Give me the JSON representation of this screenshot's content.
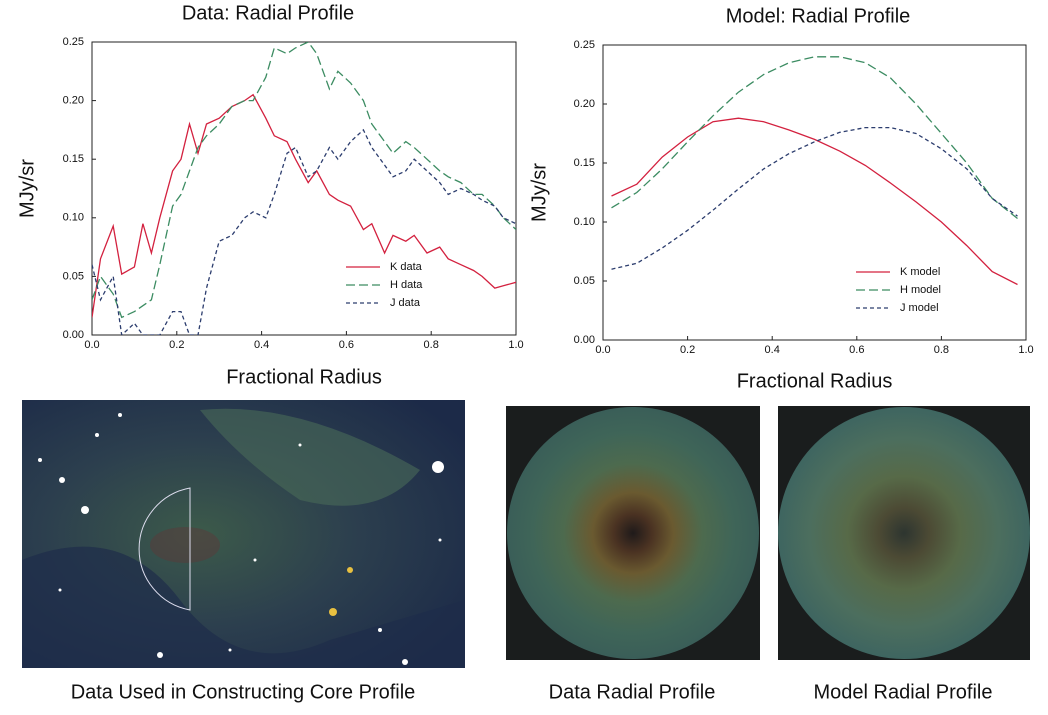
{
  "chart_data": [
    {
      "type": "line",
      "title": "Data: Radial Profile",
      "xlabel": "Fractional Radius",
      "ylabel": "MJy/sr",
      "x": [
        0,
        0.02,
        0.05,
        0.07,
        0.1,
        0.12,
        0.14,
        0.16,
        0.19,
        0.21,
        0.23,
        0.25,
        0.27,
        0.3,
        0.33,
        0.36,
        0.38,
        0.41,
        0.43,
        0.46,
        0.48,
        0.51,
        0.53,
        0.56,
        0.58,
        0.61,
        0.64,
        0.66,
        0.69,
        0.71,
        0.74,
        0.76,
        0.79,
        0.82,
        0.84,
        0.87,
        0.9,
        0.92,
        0.95,
        0.97,
        1.0
      ],
      "series": [
        {
          "name": "K data",
          "color": "#d3213f",
          "linestyle": "solid",
          "values": [
            0.015,
            0.065,
            0.093,
            0.052,
            0.058,
            0.095,
            0.07,
            0.1,
            0.14,
            0.15,
            0.18,
            0.155,
            0.18,
            0.185,
            0.195,
            0.2,
            0.205,
            0.185,
            0.17,
            0.165,
            0.15,
            0.13,
            0.14,
            0.12,
            0.115,
            0.11,
            0.09,
            0.095,
            0.07,
            0.085,
            0.08,
            0.085,
            0.07,
            0.075,
            0.065,
            0.06,
            0.055,
            0.05,
            0.04,
            0.042,
            0.045
          ]
        },
        {
          "name": "H data",
          "color": "#3c8c62",
          "linestyle": "dashed",
          "values": [
            0.03,
            0.05,
            0.035,
            0.015,
            0.02,
            0.025,
            0.03,
            0.06,
            0.11,
            0.12,
            0.14,
            0.16,
            0.17,
            0.18,
            0.195,
            0.2,
            0.2,
            0.22,
            0.245,
            0.24,
            0.245,
            0.25,
            0.24,
            0.21,
            0.225,
            0.215,
            0.2,
            0.18,
            0.165,
            0.155,
            0.165,
            0.16,
            0.15,
            0.14,
            0.135,
            0.13,
            0.12,
            0.12,
            0.11,
            0.1,
            0.09
          ]
        },
        {
          "name": "J data",
          "color": "#2c3d6e",
          "linestyle": "dotted",
          "values": [
            0.06,
            0.03,
            0.05,
            0.0,
            0.01,
            0.0,
            0.0,
            0.0,
            0.02,
            0.02,
            0.0,
            0.0,
            0.04,
            0.08,
            0.085,
            0.1,
            0.105,
            0.1,
            0.12,
            0.155,
            0.16,
            0.135,
            0.14,
            0.16,
            0.15,
            0.165,
            0.175,
            0.16,
            0.145,
            0.135,
            0.14,
            0.15,
            0.14,
            0.13,
            0.12,
            0.125,
            0.12,
            0.115,
            0.11,
            0.1,
            0.095
          ]
        }
      ],
      "xlim": [
        0,
        1
      ],
      "ylim": [
        0,
        0.25
      ],
      "xticks": [
        {
          "value": 0,
          "label": "0.0"
        },
        0.2,
        0.4,
        0.6,
        0.8,
        {
          "value": 1,
          "label": "1.0"
        }
      ],
      "yticks": [
        {
          "value": 0,
          "label": "0.00"
        },
        0.05,
        {
          "value": 0.1,
          "label": "0.10"
        },
        0.15,
        {
          "value": 0.2,
          "label": "0.20"
        },
        0.25
      ],
      "legend": "lower right"
    },
    {
      "type": "line",
      "title": "Model: Radial Profile",
      "xlabel": "Fractional Radius",
      "ylabel": "MJy/sr",
      "x": [
        0.02,
        0.08,
        0.14,
        0.2,
        0.26,
        0.32,
        0.38,
        0.44,
        0.5,
        0.56,
        0.62,
        0.68,
        0.74,
        0.8,
        0.86,
        0.92,
        0.98
      ],
      "series": [
        {
          "name": "K model",
          "color": "#d3213f",
          "linestyle": "solid",
          "values": [
            0.122,
            0.132,
            0.155,
            0.172,
            0.185,
            0.188,
            0.185,
            0.178,
            0.17,
            0.16,
            0.148,
            0.133,
            0.117,
            0.1,
            0.08,
            0.058,
            0.047
          ]
        },
        {
          "name": "H model",
          "color": "#3c8c62",
          "linestyle": "dashed",
          "values": [
            0.112,
            0.125,
            0.145,
            0.168,
            0.19,
            0.21,
            0.225,
            0.235,
            0.24,
            0.24,
            0.235,
            0.222,
            0.2,
            0.175,
            0.15,
            0.12,
            0.103
          ]
        },
        {
          "name": "J model",
          "color": "#2c3d6e",
          "linestyle": "dotted",
          "values": [
            0.06,
            0.065,
            0.078,
            0.093,
            0.11,
            0.128,
            0.145,
            0.158,
            0.168,
            0.176,
            0.18,
            0.18,
            0.175,
            0.162,
            0.145,
            0.12,
            0.105
          ]
        }
      ],
      "xlim": [
        0,
        1
      ],
      "ylim": [
        0,
        0.25
      ],
      "xticks": [
        {
          "value": 0,
          "label": "0.0"
        },
        0.2,
        0.4,
        0.6,
        0.8,
        {
          "value": 1,
          "label": "1.0"
        }
      ],
      "yticks": [
        {
          "value": 0,
          "label": "0.00"
        },
        0.05,
        {
          "value": 0.1,
          "label": "0.10"
        },
        0.15,
        {
          "value": 0.2,
          "label": "0.20"
        },
        0.25
      ],
      "legend": "lower right"
    }
  ],
  "images": [
    {
      "caption": "Data Used in Constructing Core Profile"
    },
    {
      "caption": "Data Radial Profile"
    },
    {
      "caption": "Model Radial Profile"
    }
  ]
}
